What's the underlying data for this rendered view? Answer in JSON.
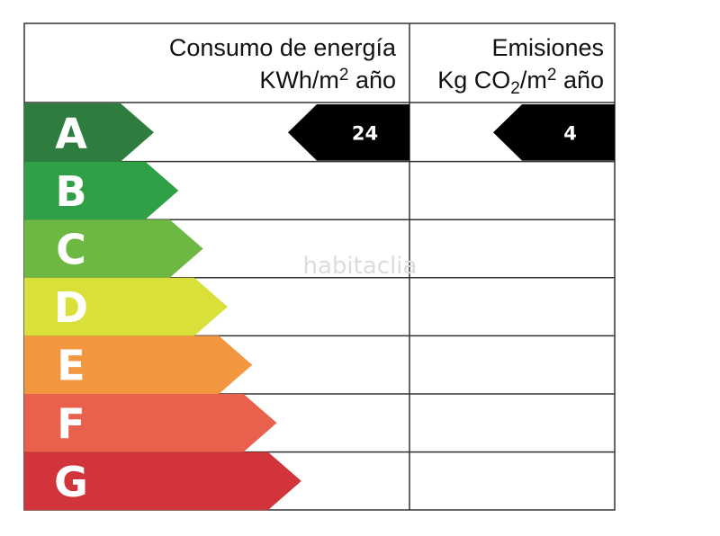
{
  "header": {
    "consumo_title": "Consumo de energía",
    "consumo_unit_prefix": "KWh/m",
    "consumo_unit_sup": "2",
    "consumo_unit_suffix": " año",
    "emisiones_title": "Emisiones",
    "emisiones_unit_prefix": "Kg CO",
    "emisiones_unit_sub": "2",
    "emisiones_unit_mid": "/m",
    "emisiones_unit_sup": "2",
    "emisiones_unit_suffix": " año"
  },
  "classes": [
    {
      "letter": "A",
      "color": "#2f7d3e"
    },
    {
      "letter": "B",
      "color": "#2fa045"
    },
    {
      "letter": "C",
      "color": "#6db843"
    },
    {
      "letter": "D",
      "color": "#d9e03a"
    },
    {
      "letter": "E",
      "color": "#f29640"
    },
    {
      "letter": "F",
      "color": "#e9604c"
    },
    {
      "letter": "G",
      "color": "#d1343a"
    }
  ],
  "rating": {
    "class": "A",
    "consumo_value": "24",
    "emisiones_value": "4",
    "indicator_color": "#000000"
  },
  "watermark": "habitaclia"
}
